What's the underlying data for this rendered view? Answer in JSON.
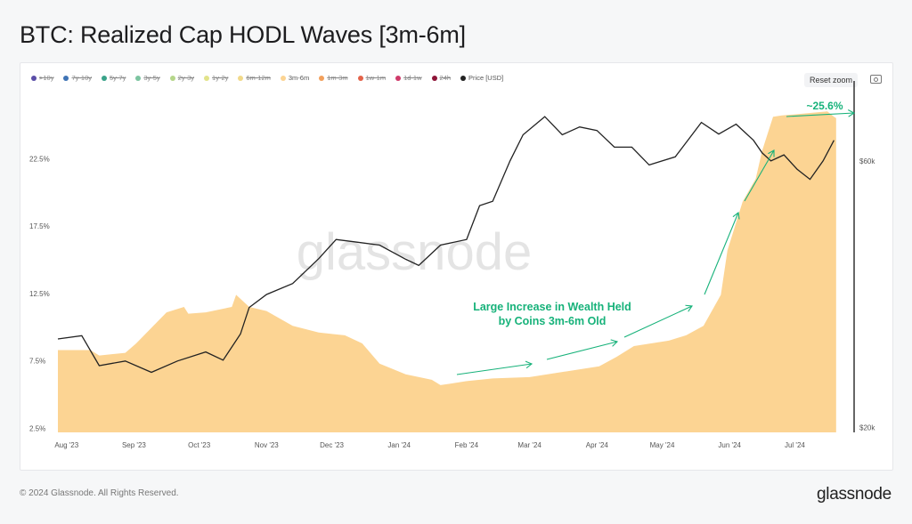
{
  "title": "BTC: Realized Cap HODL Waves [3m-6m]",
  "footer": {
    "copyright": "© 2024 Glassnode. All Rights Reserved.",
    "logo": "glassnode"
  },
  "watermark": "glassnode",
  "toolbar": {
    "reset_zoom": "Reset zoom",
    "camera_icon": "camera-icon"
  },
  "legend": [
    {
      "label": ">10y",
      "color": "#5b4ea8",
      "visible": false
    },
    {
      "label": "7y-10y",
      "color": "#3f74b5",
      "visible": false
    },
    {
      "label": "5y-7y",
      "color": "#3aa389",
      "visible": false
    },
    {
      "label": "3y-5y",
      "color": "#7cc4a0",
      "visible": false
    },
    {
      "label": "2y-3y",
      "color": "#b5d68a",
      "visible": false
    },
    {
      "label": "1y-2y",
      "color": "#e2e38a",
      "visible": false
    },
    {
      "label": "6m-12m",
      "color": "#f1d98a",
      "visible": false
    },
    {
      "label": "3m-6m",
      "color": "#fcd493",
      "visible": true
    },
    {
      "label": "1m-3m",
      "color": "#f2a05c",
      "visible": false
    },
    {
      "label": "1w-1m",
      "color": "#e3634a",
      "visible": false
    },
    {
      "label": "1d-1w",
      "color": "#cf3a6a",
      "visible": false
    },
    {
      "label": "24h",
      "color": "#8e1538",
      "visible": false
    },
    {
      "label": "Price [USD]",
      "color": "#222222",
      "visible": true
    }
  ],
  "annotations": {
    "text_line1": "Large Increase in Wealth Held",
    "text_line2": "by Coins 3m-6m Old",
    "peak_label": "~25.6%",
    "color": "#17b27a"
  },
  "chart_data": {
    "type": "area",
    "title": "BTC: Realized Cap HODL Waves [3m-6m]",
    "x_ticks": [
      "Aug '23",
      "Sep '23",
      "Oct '23",
      "Nov '23",
      "Dec '23",
      "Jan '24",
      "Feb '24",
      "Mar '24",
      "Apr '24",
      "May '24",
      "Jun '24",
      "Jul '24"
    ],
    "x_tick_dates": [
      "2023-08-01",
      "2023-09-01",
      "2023-10-01",
      "2023-11-01",
      "2023-12-01",
      "2024-01-01",
      "2024-02-01",
      "2024-03-01",
      "2024-04-01",
      "2024-05-01",
      "2024-06-01",
      "2024-07-01"
    ],
    "xlim": [
      "2023-07-28",
      "2024-07-25"
    ],
    "y_left": {
      "ticks": [
        "2.5%",
        "7.5%",
        "12.5%",
        "17.5%",
        "22.5%"
      ],
      "tick_values": [
        2.5,
        7.5,
        12.5,
        17.5,
        22.5
      ],
      "range": [
        2.2,
        27.6
      ],
      "unit": "%"
    },
    "y_right": {
      "ticks": [
        "$20k",
        "$60k"
      ],
      "tick_values": [
        20000,
        60000
      ],
      "range": [
        19600,
        80400
      ],
      "scale": "log"
    },
    "grid": false,
    "legend_position": "top-left",
    "series": [
      {
        "name": "3m-6m",
        "axis": "left",
        "type": "area",
        "color": "#fcd493",
        "x": [
          "2023-07-28",
          "2023-08-12",
          "2023-08-16",
          "2023-08-28",
          "2023-09-02",
          "2023-09-16",
          "2023-09-24",
          "2023-09-26",
          "2023-10-04",
          "2023-10-16",
          "2023-10-18",
          "2023-10-24",
          "2023-11-01",
          "2023-11-13",
          "2023-11-25",
          "2023-12-07",
          "2023-12-15",
          "2023-12-23",
          "2024-01-04",
          "2024-01-16",
          "2024-01-20",
          "2024-02-01",
          "2024-02-13",
          "2024-03-01",
          "2024-03-17",
          "2024-04-02",
          "2024-04-10",
          "2024-04-18",
          "2024-05-04",
          "2024-05-12",
          "2024-05-20",
          "2024-05-28",
          "2024-05-31",
          "2024-06-07",
          "2024-06-13",
          "2024-06-16",
          "2024-06-21",
          "2024-06-25",
          "2024-07-16",
          "2024-07-19",
          "2024-07-20"
        ],
        "values": [
          8.3,
          8.3,
          7.9,
          8.1,
          8.8,
          11.1,
          11.5,
          11.0,
          11.1,
          11.5,
          12.4,
          11.5,
          11.2,
          10.1,
          9.6,
          9.4,
          8.8,
          7.3,
          6.5,
          6.1,
          5.7,
          6.0,
          6.2,
          6.3,
          6.7,
          7.1,
          7.8,
          8.6,
          9.0,
          9.4,
          10.1,
          12.4,
          15.7,
          19.3,
          21.0,
          23.1,
          25.6,
          25.7,
          26.0,
          25.6,
          25.5
        ]
      },
      {
        "name": "Price [USD]",
        "axis": "right",
        "type": "line",
        "color": "#222222",
        "x": [
          "2023-07-28",
          "2023-08-08",
          "2023-08-16",
          "2023-08-28",
          "2023-09-09",
          "2023-09-21",
          "2023-10-04",
          "2023-10-12",
          "2023-10-20",
          "2023-10-24",
          "2023-11-01",
          "2023-11-13",
          "2023-11-25",
          "2023-12-03",
          "2023-12-11",
          "2023-12-23",
          "2024-01-04",
          "2024-01-10",
          "2024-01-20",
          "2024-02-01",
          "2024-02-07",
          "2024-02-13",
          "2024-02-21",
          "2024-02-27",
          "2024-03-08",
          "2024-03-16",
          "2024-03-24",
          "2024-04-01",
          "2024-04-09",
          "2024-04-17",
          "2024-04-25",
          "2024-05-07",
          "2024-05-19",
          "2024-05-27",
          "2024-06-04",
          "2024-06-12",
          "2024-06-16",
          "2024-06-20",
          "2024-06-26",
          "2024-07-02",
          "2024-07-08",
          "2024-07-14",
          "2024-07-19"
        ],
        "values": [
          28800,
          29200,
          25800,
          26300,
          25100,
          26300,
          27300,
          26400,
          29400,
          32800,
          34600,
          36200,
          40100,
          43400,
          43000,
          42400,
          40000,
          39000,
          42400,
          43400,
          49900,
          50800,
          60000,
          66800,
          72000,
          66800,
          69000,
          68000,
          63500,
          63500,
          59000,
          61000,
          70300,
          67000,
          69800,
          65300,
          62000,
          60000,
          61500,
          58000,
          55600,
          60000,
          65300
        ]
      }
    ]
  }
}
